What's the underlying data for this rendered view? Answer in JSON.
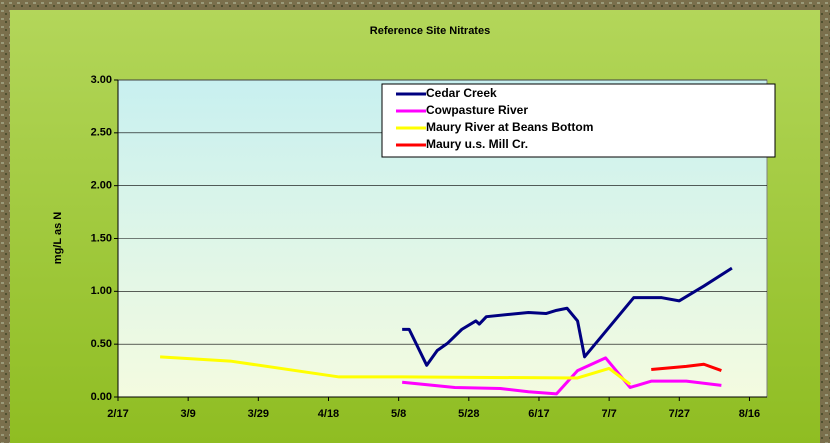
{
  "chart_data": {
    "type": "line",
    "title": "Reference Site Nitrates",
    "y_label": "mg/L as N",
    "xlim": [
      "2/17",
      "8/21"
    ],
    "xticks": [
      "2/17",
      "3/9",
      "3/29",
      "4/18",
      "5/8",
      "5/28",
      "6/17",
      "7/7",
      "7/27",
      "8/16"
    ],
    "ylim": [
      0,
      3
    ],
    "yticks": [
      {
        "value": 0,
        "label": "0.00"
      },
      {
        "value": 0.5,
        "label": "0.50"
      },
      {
        "value": 1,
        "label": "1.00"
      },
      {
        "value": 1.5,
        "label": "1.50"
      },
      {
        "value": 2,
        "label": "2.00"
      },
      {
        "value": 2.5,
        "label": "2.50"
      },
      {
        "value": 3,
        "label": "3.00"
      }
    ],
    "grid": true,
    "legend": "upper right",
    "series": [
      {
        "name": "Cedar Creek",
        "color": "#000080",
        "x": [
          "5/9",
          "5/11",
          "5/16",
          "5/19",
          "5/22",
          "5/26",
          "5/30",
          "5/31",
          "6/2",
          "6/14",
          "6/19",
          "6/22",
          "6/25",
          "6/28",
          "6/30",
          "7/14",
          "7/22",
          "7/27",
          "8/3",
          "8/11"
        ],
        "values": [
          0.64,
          0.64,
          0.3,
          0.44,
          0.51,
          0.64,
          0.72,
          0.69,
          0.76,
          0.8,
          0.79,
          0.82,
          0.84,
          0.72,
          0.38,
          0.94,
          0.94,
          0.91,
          1.05,
          1.22
        ]
      },
      {
        "name": "Cowpasture River",
        "color": "#ff00ff",
        "x": [
          "5/9",
          "5/24",
          "6/6",
          "6/14",
          "6/22",
          "6/28",
          "7/6",
          "7/13",
          "7/19",
          "7/29",
          "8/8"
        ],
        "values": [
          0.14,
          0.09,
          0.08,
          0.05,
          0.03,
          0.25,
          0.37,
          0.09,
          0.15,
          0.15,
          0.11
        ]
      },
      {
        "name": "Maury River at Beans Bottom",
        "color": "#ffff00",
        "x": [
          "3/1",
          "3/21",
          "4/21",
          "5/9",
          "6/28",
          "7/7",
          "7/13"
        ],
        "values": [
          0.38,
          0.34,
          0.19,
          0.19,
          0.18,
          0.27,
          0.12
        ]
      },
      {
        "name": "Maury u.s. Mill Cr.",
        "color": "#ff0000",
        "x": [
          "7/19",
          "7/29",
          "8/3",
          "8/8"
        ],
        "values": [
          0.26,
          0.29,
          0.31,
          0.25
        ]
      }
    ]
  }
}
